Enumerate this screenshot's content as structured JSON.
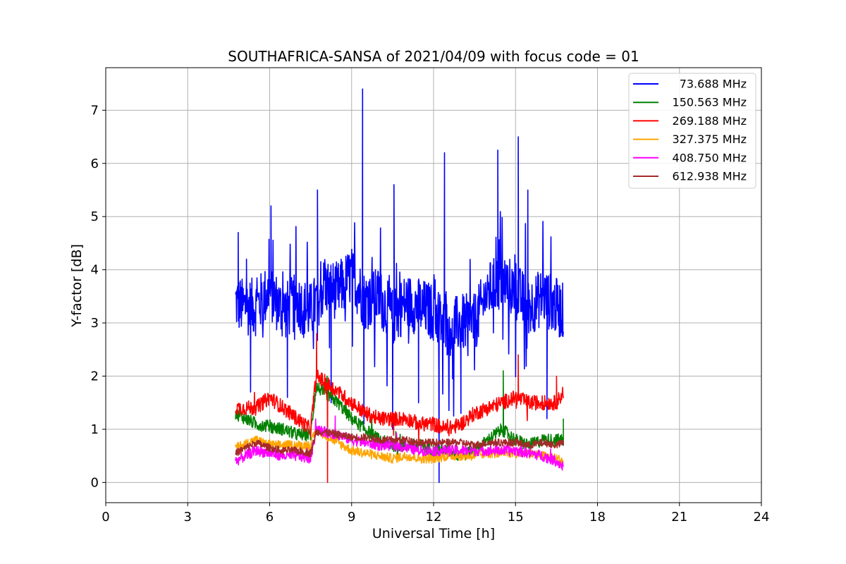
{
  "chart_data": {
    "type": "line",
    "title": "SOUTHAFRICA-SANSA of 2021/04/09 with focus code = 01",
    "xlabel": "Universal Time [h]",
    "ylabel": "Y-factor [dB]",
    "xlim": [
      0,
      24
    ],
    "ylim": [
      -0.38,
      7.8
    ],
    "xticks": [
      0,
      3,
      6,
      9,
      12,
      15,
      18,
      21,
      24
    ],
    "yticks": [
      0,
      1,
      2,
      3,
      4,
      5,
      6,
      7
    ],
    "grid": true,
    "legend_position": "top-right",
    "series": [
      {
        "name": "73.688 MHz",
        "color": "#0000ff",
        "x": [
          4.75,
          5.0,
          5.5,
          6.0,
          6.5,
          7.0,
          7.5,
          8.0,
          8.5,
          9.0,
          9.5,
          10.0,
          10.5,
          11.0,
          11.5,
          12.0,
          12.5,
          13.0,
          13.5,
          14.0,
          14.5,
          15.0,
          15.5,
          16.0,
          16.5,
          16.75
        ],
        "values": [
          3.4,
          3.3,
          3.3,
          3.6,
          3.2,
          3.4,
          3.2,
          3.7,
          3.6,
          3.9,
          3.4,
          3.5,
          3.1,
          3.4,
          3.3,
          3.2,
          2.9,
          3.0,
          3.0,
          3.6,
          3.8,
          3.6,
          3.3,
          3.5,
          3.3,
          3.2
        ],
        "peaks": [
          [
            4.85,
            4.7
          ],
          [
            5.15,
            4.2
          ],
          [
            6.05,
            5.2
          ],
          [
            7.75,
            5.5
          ],
          [
            9.4,
            7.4
          ],
          [
            10.55,
            5.6
          ],
          [
            12.4,
            6.2
          ],
          [
            14.35,
            6.25
          ],
          [
            15.1,
            6.5
          ],
          [
            15.45,
            5.5
          ]
        ],
        "dips": [
          [
            5.3,
            1.7
          ],
          [
            6.65,
            1.6
          ],
          [
            8.25,
            1.5
          ],
          [
            9.45,
            1.1
          ],
          [
            10.5,
            1.0
          ],
          [
            11.45,
            1.5
          ],
          [
            12.2,
            0.0
          ],
          [
            13.0,
            1.3
          ],
          [
            16.15,
            1.2
          ]
        ]
      },
      {
        "name": "150.563 MHz",
        "color": "#008000",
        "x": [
          4.75,
          5.5,
          6.5,
          7.0,
          7.5,
          7.7,
          8.0,
          8.5,
          9.0,
          9.5,
          10.0,
          10.5,
          11.0,
          11.5,
          12.0,
          12.5,
          13.0,
          13.5,
          14.0,
          14.5,
          15.0,
          15.5,
          16.0,
          16.5,
          16.75
        ],
        "values": [
          1.3,
          1.1,
          1.0,
          0.9,
          0.9,
          1.8,
          1.7,
          1.5,
          1.2,
          1.0,
          0.8,
          0.7,
          0.7,
          0.7,
          0.6,
          0.6,
          0.5,
          0.6,
          0.8,
          1.0,
          0.8,
          0.7,
          0.8,
          0.8,
          0.8
        ],
        "peaks": [
          [
            14.55,
            2.1
          ],
          [
            8.1,
            2.0
          ],
          [
            16.75,
            1.2
          ]
        ]
      },
      {
        "name": "269.188 MHz",
        "color": "#ff0000",
        "x": [
          4.75,
          5.5,
          6.0,
          6.5,
          7.0,
          7.5,
          7.7,
          8.0,
          8.5,
          9.0,
          9.5,
          10.0,
          10.5,
          11.0,
          11.5,
          12.0,
          12.5,
          13.0,
          13.5,
          14.0,
          14.5,
          15.0,
          15.5,
          16.0,
          16.5,
          16.75
        ],
        "values": [
          1.4,
          1.4,
          1.6,
          1.4,
          1.2,
          1.0,
          2.0,
          1.9,
          1.7,
          1.5,
          1.3,
          1.2,
          1.2,
          1.2,
          1.1,
          1.1,
          1.0,
          1.1,
          1.3,
          1.4,
          1.5,
          1.6,
          1.5,
          1.5,
          1.5,
          1.7
        ],
        "peaks": [
          [
            7.72,
            2.8
          ],
          [
            15.1,
            2.4
          ],
          [
            16.5,
            2.0
          ]
        ],
        "dips": [
          [
            8.12,
            0.0
          ]
        ]
      },
      {
        "name": "327.375 MHz",
        "color": "#ffa500",
        "x": [
          4.75,
          5.5,
          6.0,
          6.5,
          7.0,
          7.5,
          7.7,
          8.0,
          8.5,
          9.0,
          9.5,
          10.0,
          10.5,
          11.0,
          11.5,
          12.0,
          12.5,
          13.0,
          13.5,
          14.0,
          14.5,
          15.0,
          15.5,
          16.0,
          16.5,
          16.75
        ],
        "values": [
          0.65,
          0.8,
          0.7,
          0.7,
          0.7,
          0.7,
          1.0,
          0.9,
          0.75,
          0.6,
          0.55,
          0.5,
          0.45,
          0.5,
          0.45,
          0.45,
          0.5,
          0.5,
          0.5,
          0.55,
          0.55,
          0.55,
          0.55,
          0.5,
          0.45,
          0.4
        ],
        "peaks": []
      },
      {
        "name": "408.750 MHz",
        "color": "#ff00ff",
        "x": [
          4.75,
          5.5,
          6.0,
          6.5,
          7.0,
          7.5,
          7.7,
          8.0,
          8.5,
          9.0,
          9.5,
          10.0,
          10.5,
          11.0,
          11.5,
          12.0,
          12.5,
          13.0,
          13.5,
          14.0,
          14.5,
          15.0,
          15.5,
          16.0,
          16.5,
          16.75
        ],
        "values": [
          0.4,
          0.6,
          0.55,
          0.5,
          0.5,
          0.45,
          1.0,
          0.95,
          0.9,
          0.8,
          0.75,
          0.7,
          0.7,
          0.65,
          0.6,
          0.6,
          0.6,
          0.6,
          0.6,
          0.6,
          0.6,
          0.6,
          0.55,
          0.5,
          0.4,
          0.3
        ],
        "peaks": [
          [
            8.4,
            1.25
          ]
        ]
      },
      {
        "name": "612.938 MHz",
        "color": "#a52a2a",
        "x": [
          4.75,
          5.5,
          6.0,
          6.5,
          7.0,
          7.5,
          7.7,
          8.0,
          8.5,
          9.0,
          9.5,
          10.0,
          10.5,
          11.0,
          11.5,
          12.0,
          12.5,
          13.0,
          13.5,
          14.0,
          14.5,
          15.0,
          15.5,
          16.0,
          16.5,
          16.75
        ],
        "values": [
          0.55,
          0.75,
          0.65,
          0.6,
          0.6,
          0.55,
          0.95,
          0.95,
          0.9,
          0.85,
          0.85,
          0.8,
          0.8,
          0.8,
          0.75,
          0.75,
          0.75,
          0.75,
          0.7,
          0.75,
          0.75,
          0.75,
          0.7,
          0.75,
          0.7,
          0.75
        ],
        "peaks": []
      }
    ]
  }
}
